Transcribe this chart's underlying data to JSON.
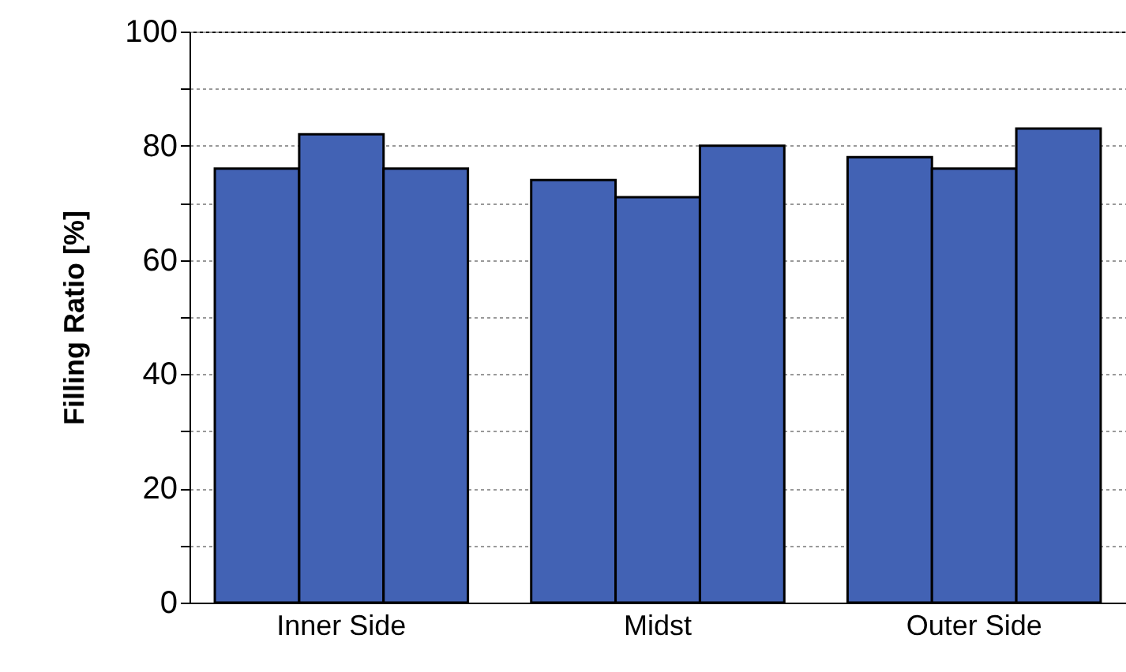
{
  "chart_data": {
    "type": "bar",
    "ylabel": "Filling Ratio [%]",
    "categories": [
      "Inner Side",
      "Midst",
      "Outer Side"
    ],
    "series": [
      {
        "color": "#4262b4",
        "values": [
          76,
          74,
          78
        ]
      },
      {
        "color": "#4262b4",
        "values": [
          82,
          71,
          76
        ]
      },
      {
        "color": "#4262b4",
        "values": [
          76,
          80,
          83
        ]
      }
    ],
    "ylim": [
      0,
      100
    ],
    "yticks": [
      0,
      {
        "value": 10,
        "label": null
      },
      20,
      {
        "value": 30,
        "label": null
      },
      40,
      {
        "value": 50,
        "label": null
      },
      60,
      {
        "value": 70,
        "label": null
      },
      80,
      {
        "value": 90,
        "label": null
      },
      100
    ],
    "grid": "y",
    "legend": false
  }
}
